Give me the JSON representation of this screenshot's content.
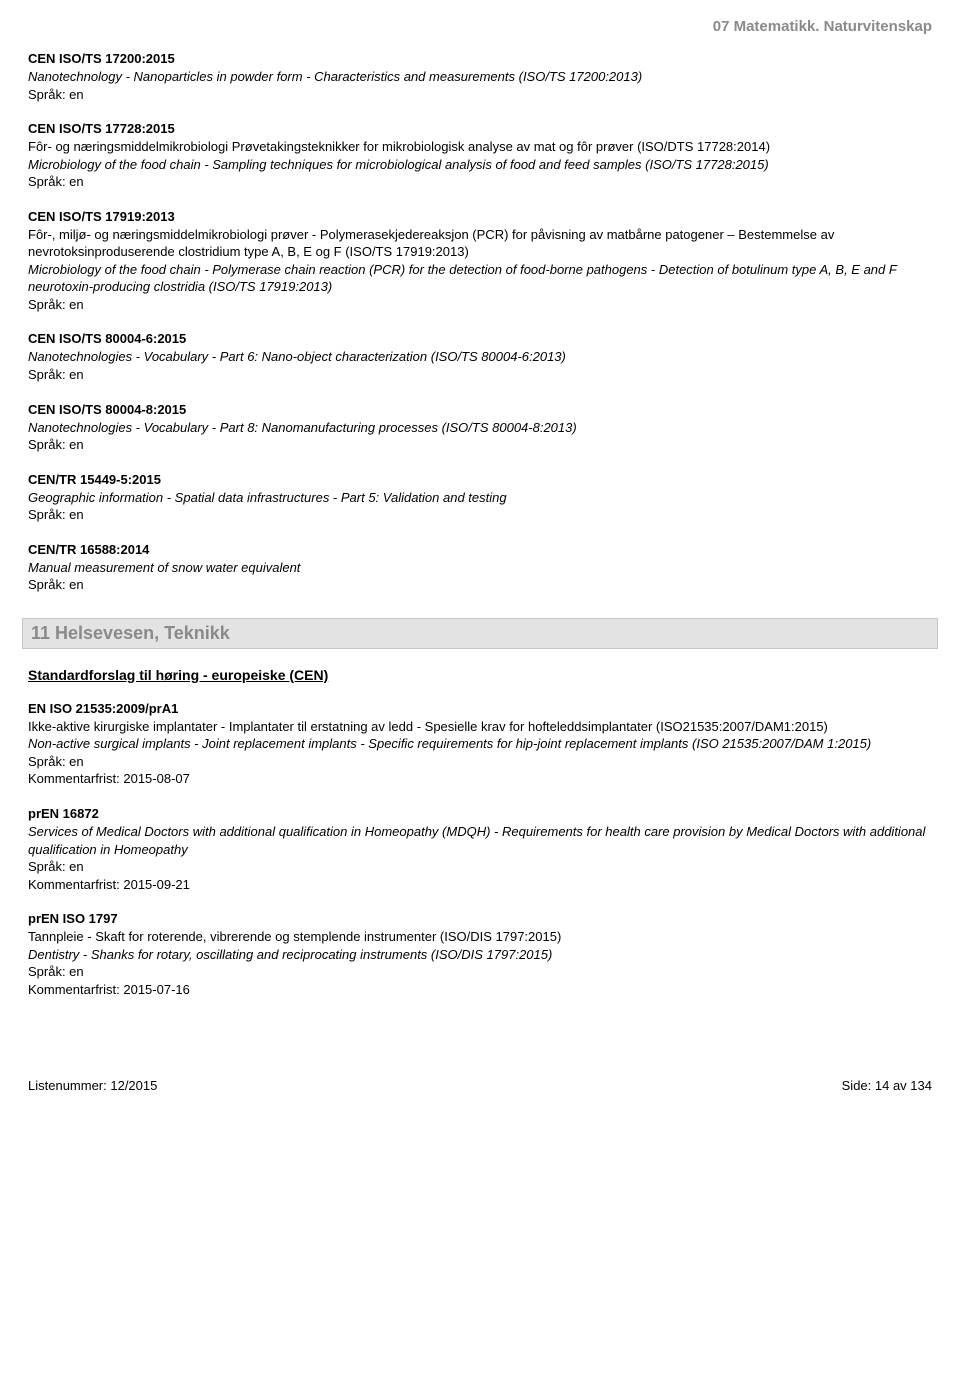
{
  "header_right": "07 Matematikk. Naturvitenskap",
  "entries_top": [
    {
      "code": "CEN ISO/TS 17200:2015",
      "italic": "Nanotechnology - Nanoparticles in powder form - Characteristics and measurements (ISO/TS 17200:2013)",
      "lang": "Språk: en"
    },
    {
      "code": "CEN ISO/TS 17728:2015",
      "plain": "Fôr- og næringsmiddelmikrobiologi Prøvetakingsteknikker for mikrobiologisk analyse av mat og fôr prøver (ISO/DTS 17728:2014)",
      "italic": "Microbiology of the food chain - Sampling techniques for microbiological analysis of food and feed samples (ISO/TS 17728:2015)",
      "lang": "Språk: en"
    },
    {
      "code": "CEN ISO/TS 17919:2013",
      "plain": "Fôr-, miljø- og næringsmiddelmikrobiologi prøver - Polymerasekjedereaksjon (PCR) for påvisning av matbårne patogener – Bestemmelse av nevrotoksinproduserende clostridium type A, B, E og F (ISO/TS 17919:2013)",
      "italic": "Microbiology of the food chain - Polymerase chain reaction (PCR) for the detection of food-borne pathogens - Detection of botulinum type A, B, E and F neurotoxin-producing clostridia (ISO/TS 17919:2013)",
      "lang": "Språk: en"
    },
    {
      "code": "CEN ISO/TS 80004-6:2015",
      "italic": "Nanotechnologies - Vocabulary - Part 6: Nano-object characterization (ISO/TS 80004-6:2013)",
      "lang": "Språk: en"
    },
    {
      "code": "CEN ISO/TS 80004-8:2015",
      "italic": "Nanotechnologies - Vocabulary - Part 8: Nanomanufacturing processes (ISO/TS 80004-8:2013)",
      "lang": "Språk: en"
    },
    {
      "code": "CEN/TR 15449-5:2015",
      "italic": "Geographic information - Spatial data infrastructures - Part 5: Validation and testing",
      "lang": "Språk: en"
    },
    {
      "code": "CEN/TR 16588:2014",
      "italic": "Manual measurement of snow water equivalent",
      "lang": "Språk: en"
    }
  ],
  "section_bar": "11 Helsevesen, Teknikk",
  "subheading": "Standardforslag til høring - europeiske (CEN)",
  "entries_bottom": [
    {
      "code": "EN ISO 21535:2009/prA1",
      "plain": "Ikke-aktive kirurgiske implantater - Implantater til erstatning av ledd - Spesielle krav for hofteleddsimplantater (ISO21535:2007/DAM1:2015)",
      "italic": "Non-active surgical implants - Joint replacement implants - Specific requirements for hip-joint replacement implants (ISO 21535:2007/DAM 1:2015)",
      "lang": "Språk: en",
      "deadline": "Kommentarfrist: 2015-08-07"
    },
    {
      "code": "prEN 16872",
      "italic": "Services of Medical Doctors with additional qualification in Homeopathy (MDQH) - Requirements for health care provision by Medical Doctors with additional qualification in Homeopathy",
      "lang": "Språk: en",
      "deadline": "Kommentarfrist: 2015-09-21"
    },
    {
      "code": "prEN ISO 1797",
      "plain": "Tannpleie - Skaft for roterende, vibrerende og stemplende instrumenter (ISO/DIS 1797:2015)",
      "italic": "Dentistry - Shanks for rotary, oscillating and reciprocating instruments (ISO/DIS 1797:2015)",
      "lang": "Språk: en",
      "deadline": "Kommentarfrist: 2015-07-16"
    }
  ],
  "footer_left": "Listenummer: 12/2015",
  "footer_right": "Side: 14 av 134"
}
